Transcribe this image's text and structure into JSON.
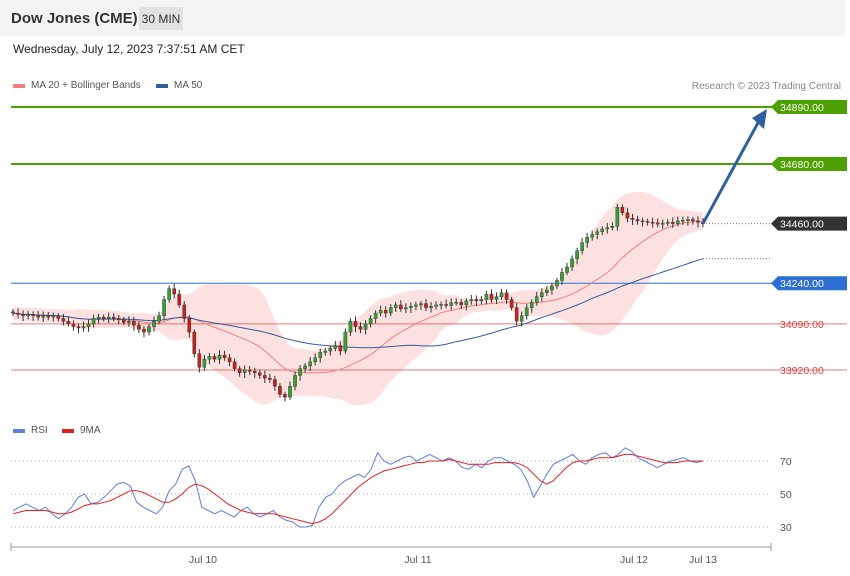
{
  "header": {
    "title": "Dow Jones (CME)",
    "timeframe": "30 MIN"
  },
  "timestamp": "Wednesday, July 12, 2023 7:37:51 AM CET",
  "legend": {
    "ma20_label": "MA 20 + Bollinger Bands",
    "ma50_label": "MA 50",
    "rsi_label": "RSI",
    "rsi_ma_label": "9MA"
  },
  "credit": "Research © 2023 Trading Central",
  "colors": {
    "resistance": "#4ca000",
    "support": "#e04040",
    "pivot": "#2e6fd3",
    "last": "#333333",
    "ma20": "#f08080",
    "ma50": "#2f5fa0",
    "band": "#fcd6d6",
    "arrow": "#2f5fa0",
    "rsi": "#5b7fe0",
    "rsi_ma": "#e02020"
  },
  "chart_data": {
    "type": "candlestick",
    "timeframe": "30 MIN",
    "x_ticks": [
      "Jul 10",
      "Jul 11",
      "Jul 12",
      "Jul 13"
    ],
    "price_levels": [
      {
        "value": 34890.0,
        "label": "34890.00",
        "kind": "resistance"
      },
      {
        "value": 34680.0,
        "label": "34680.00",
        "kind": "resistance"
      },
      {
        "value": 34460.0,
        "label": "34460.00",
        "kind": "last"
      },
      {
        "value": 34240.0,
        "label": "34240.00",
        "kind": "pivot"
      },
      {
        "value": 34090.0,
        "label": "34090.00",
        "kind": "support"
      },
      {
        "value": 33920.0,
        "label": "33920.00",
        "kind": "support"
      }
    ],
    "forecast_target": 34890.0,
    "close": [
      34130,
      34125,
      34120,
      34125,
      34120,
      34115,
      34120,
      34115,
      34120,
      34110,
      34100,
      34090,
      34080,
      34075,
      34080,
      34090,
      34110,
      34115,
      34110,
      34115,
      34110,
      34105,
      34095,
      34100,
      34085,
      34070,
      34060,
      34080,
      34100,
      34120,
      34180,
      34220,
      34200,
      34160,
      34110,
      34060,
      33980,
      33930,
      33960,
      33970,
      33960,
      33975,
      33965,
      33950,
      33925,
      33910,
      33920,
      33915,
      33910,
      33900,
      33890,
      33885,
      33860,
      33830,
      33820,
      33860,
      33900,
      33925,
      33935,
      33950,
      33965,
      33985,
      33990,
      34000,
      34010,
      33990,
      34060,
      34100,
      34080,
      34070,
      34090,
      34110,
      34130,
      34140,
      34130,
      34150,
      34160,
      34145,
      34150,
      34155,
      34160,
      34165,
      34150,
      34155,
      34160,
      34162,
      34158,
      34168,
      34170,
      34160,
      34175,
      34180,
      34175,
      34180,
      34200,
      34180,
      34190,
      34205,
      34180,
      34150,
      34100,
      34120,
      34150,
      34170,
      34190,
      34205,
      34215,
      34230,
      34250,
      34280,
      34300,
      34330,
      34360,
      34390,
      34410,
      34420,
      34430,
      34440,
      34445,
      34450,
      34520,
      34500,
      34480,
      34475,
      34470,
      34468,
      34465,
      34463,
      34458,
      34462,
      34465,
      34460,
      34470,
      34472,
      34475,
      34470,
      34465,
      34460
    ],
    "price_axis": [
      33800,
      34900
    ],
    "rsi": {
      "ticks": [
        70,
        50,
        30
      ],
      "rsi": [
        40,
        42,
        44,
        42,
        40,
        42,
        38,
        35,
        38,
        42,
        48,
        50,
        44,
        45,
        48,
        52,
        56,
        57,
        55,
        45,
        42,
        40,
        38,
        42,
        52,
        56,
        65,
        67,
        58,
        42,
        40,
        38,
        40,
        38,
        36,
        40,
        42,
        38,
        36,
        38,
        40,
        36,
        34,
        33,
        30,
        30,
        31,
        42,
        48,
        50,
        55,
        58,
        60,
        62,
        60,
        65,
        75,
        70,
        68,
        70,
        72,
        73,
        70,
        72,
        74,
        72,
        70,
        72,
        70,
        66,
        65,
        68,
        66,
        70,
        72,
        72,
        70,
        68,
        65,
        58,
        48,
        55,
        62,
        68,
        70,
        72,
        74,
        70,
        68,
        72,
        74,
        75,
        72,
        74,
        78,
        76,
        72,
        70,
        68,
        66,
        68,
        70,
        71,
        72,
        70,
        69,
        70
      ],
      "ma": [
        38,
        39,
        40,
        40,
        40,
        40,
        39,
        38,
        38,
        39,
        41,
        43,
        44,
        44,
        45,
        46,
        48,
        50,
        52,
        52,
        51,
        49,
        47,
        45,
        45,
        47,
        50,
        54,
        56,
        55,
        53,
        50,
        47,
        44,
        42,
        40,
        39,
        38,
        38,
        38,
        38,
        37,
        36,
        35,
        34,
        33,
        32,
        33,
        35,
        38,
        42,
        46,
        50,
        54,
        57,
        60,
        62,
        64,
        65,
        66,
        67,
        68,
        69,
        69,
        70,
        70,
        70,
        71,
        70,
        69,
        68,
        68,
        68,
        68,
        69,
        69,
        69,
        69,
        68,
        66,
        62,
        58,
        56,
        58,
        62,
        66,
        69,
        70,
        70,
        71,
        72,
        72,
        72,
        73,
        74,
        74,
        73,
        72,
        71,
        70,
        69,
        69,
        69,
        70,
        70,
        70,
        70
      ]
    }
  }
}
